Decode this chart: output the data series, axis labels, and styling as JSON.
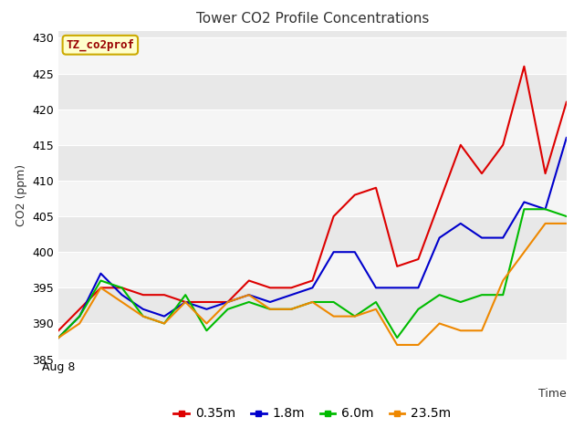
{
  "title": "Tower CO2 Profile Concentrations",
  "xlabel": "Time",
  "ylabel": "CO2 (ppm)",
  "ylim": [
    385,
    431
  ],
  "yticks": [
    385,
    390,
    395,
    400,
    405,
    410,
    415,
    420,
    425,
    430
  ],
  "x_label_text": "Aug 8",
  "legend_label": "TZ_co2prof",
  "fig_bg_color": "#ffffff",
  "plot_bg_color": "#e8e8e8",
  "band_color_light": "#f0f0f0",
  "band_color_dark": "#dcdcdc",
  "grid_color": "#ffffff",
  "series": {
    "0.35m": {
      "color": "#dd0000",
      "values": [
        389,
        392,
        395,
        395,
        394,
        394,
        393,
        393,
        393,
        396,
        395,
        395,
        396,
        405,
        408,
        409,
        398,
        399,
        407,
        415,
        411,
        415,
        426,
        411,
        421
      ]
    },
    "1.8m": {
      "color": "#0000cc",
      "values": [
        388,
        391,
        397,
        394,
        392,
        391,
        393,
        392,
        393,
        394,
        393,
        394,
        395,
        400,
        400,
        395,
        395,
        395,
        402,
        404,
        402,
        402,
        407,
        406,
        416
      ]
    },
    "6.0m": {
      "color": "#00bb00",
      "values": [
        388,
        391,
        396,
        395,
        391,
        390,
        394,
        389,
        392,
        393,
        392,
        392,
        393,
        393,
        391,
        393,
        388,
        392,
        394,
        393,
        394,
        394,
        406,
        406,
        405
      ]
    },
    "23.5m": {
      "color": "#ee8800",
      "values": [
        388,
        390,
        395,
        393,
        391,
        390,
        393,
        390,
        393,
        394,
        392,
        392,
        393,
        391,
        391,
        392,
        387,
        387,
        390,
        389,
        389,
        396,
        400,
        404,
        404
      ]
    }
  }
}
